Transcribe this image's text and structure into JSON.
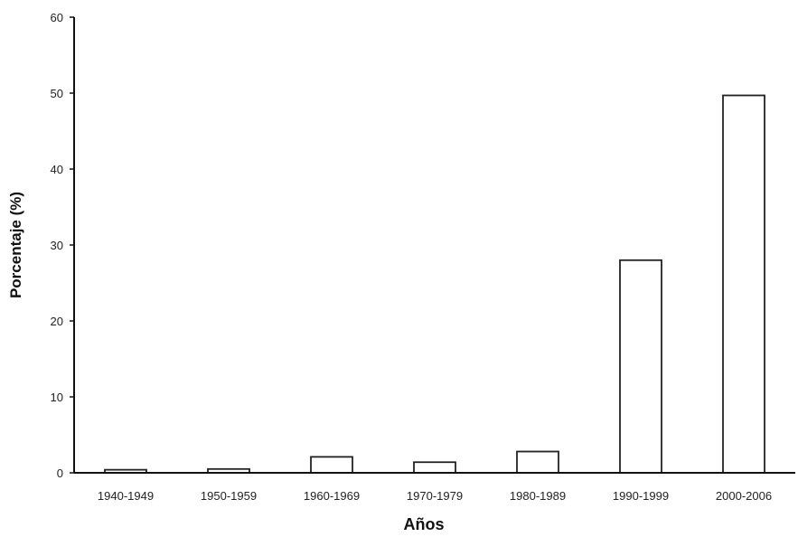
{
  "chart_data": {
    "type": "bar",
    "title": "",
    "xlabel": "Años",
    "ylabel": "Porcentaje (%)",
    "categories": [
      "1940-1949",
      "1950-1959",
      "1960-1969",
      "1970-1979",
      "1980-1989",
      "1990-1999",
      "2000-2006"
    ],
    "values": [
      0.4,
      0.5,
      2.1,
      1.4,
      2.8,
      28.0,
      49.7
    ],
    "ylim": [
      0,
      60
    ],
    "yticks": [
      "0",
      "10",
      "20",
      "30",
      "40",
      "50",
      "60"
    ],
    "grid": false,
    "legend": "none",
    "colors": {
      "bar_fill": "#ffffff",
      "bar_stroke": "#222222",
      "axis": "#111111"
    }
  }
}
